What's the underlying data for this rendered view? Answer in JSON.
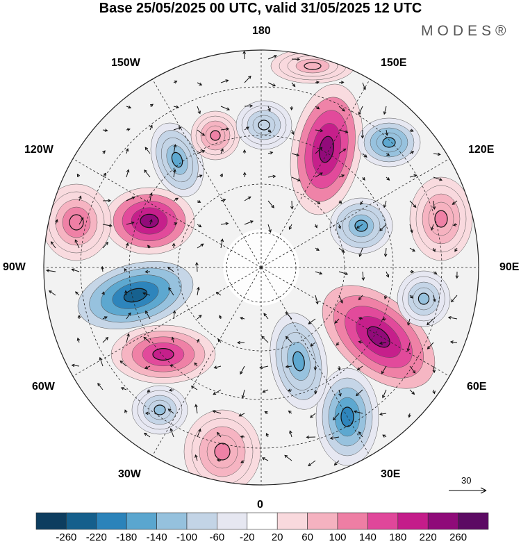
{
  "title": "Base 25/05/2025 00 UTC, valid 31/05/2025 12 UTC",
  "brand": "MODES®",
  "longitude_labels": {
    "top": "180",
    "bottom": "0",
    "left": "90W",
    "right": "90E",
    "upper_left_150": "150W",
    "upper_right_150": "150E",
    "upper_left_120": "120W",
    "upper_right_120": "120E",
    "lower_left_60": "60W",
    "lower_right_60": "60E",
    "lower_left_30": "30W",
    "lower_right_30": "30E"
  },
  "vector_scale": {
    "label": "30"
  },
  "colorbar": {
    "ticks": [
      "-260",
      "-220",
      "-180",
      "-140",
      "-100",
      "-60",
      "-20",
      "20",
      "60",
      "100",
      "140",
      "180",
      "220",
      "260"
    ],
    "colors": [
      "#0d3d5f",
      "#155f8c",
      "#2b83ba",
      "#5aa6cf",
      "#95c1dd",
      "#c3d4e6",
      "#e6e7f1",
      "#ffffff",
      "#f9d9dd",
      "#f5b2c0",
      "#ee7ea4",
      "#e0479a",
      "#c41c8a",
      "#8f0a79",
      "#5c0a63"
    ]
  },
  "anomaly_centers": [
    {
      "name": "neg-atlantic-west",
      "v": -250
    },
    {
      "name": "pos-alaska-west",
      "v": 230
    },
    {
      "name": "pos-east-siberia",
      "v": 230
    },
    {
      "name": "pos-europe-russia",
      "v": 240
    },
    {
      "name": "neg-scandinavia",
      "v": -200
    },
    {
      "name": "pos-atlantic-central",
      "v": 200
    },
    {
      "name": "neg-pacific-aleutian",
      "v": -150
    },
    {
      "name": "neg-kamchatka",
      "v": -170
    },
    {
      "name": "neg-siberia-central",
      "v": -160
    },
    {
      "name": "neg-west-russia",
      "v": -150
    },
    {
      "name": "neg-asia-central",
      "v": -110
    },
    {
      "name": "pos-mongolia",
      "v": 110
    },
    {
      "name": "pos-canada-west",
      "v": 130
    },
    {
      "name": "pos-greenland-east",
      "v": 100
    },
    {
      "name": "neg-atlantic-south",
      "v": -110
    },
    {
      "name": "pos-east-atlantic",
      "v": 120
    },
    {
      "name": "neg-alaska-north",
      "v": -100
    },
    {
      "name": "pos-pacific-north",
      "v": 80
    }
  ]
}
